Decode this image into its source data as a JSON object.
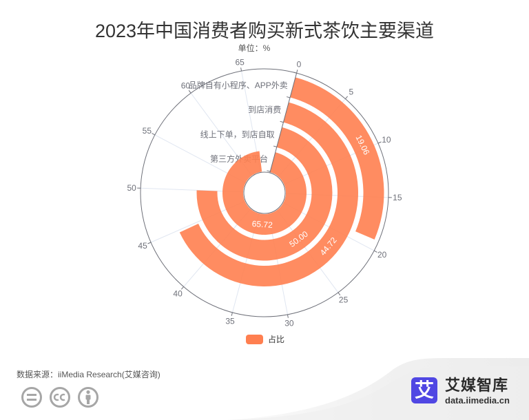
{
  "title": "2023年中国消费者购买新式茶饮主要渠道",
  "subtitle": "单位：%",
  "legend": {
    "label": "占比",
    "color": "#ff7f50"
  },
  "footer": {
    "source": "数据来源：iiMedia Research(艾媒咨询)",
    "license_icons": [
      "cc-nd-icon",
      "cc-icon",
      "cc-by-icon"
    ],
    "license_color": "#a6a6a6"
  },
  "brand": {
    "logo_char": "艾",
    "logo_color": "#5047e3",
    "name": "艾媒智库",
    "url": "data.iimedia.cn"
  },
  "chart_data": {
    "type": "bar",
    "subtype": "polar-radial-bar",
    "title": "2023年中国消费者购买新式茶饮主要渠道",
    "unit": "%",
    "categories": [
      "第三方外卖平台",
      "线上下单，到店自取",
      "到店消费",
      "品牌自有小程序、APP外卖"
    ],
    "series": [
      {
        "name": "占比",
        "color": "#ff7f50",
        "values": [
          65.72,
          50.0,
          44.72,
          19.06
        ],
        "labels": [
          "65.72",
          "50.00",
          "44.72",
          "19.06"
        ]
      }
    ],
    "angle_axis": {
      "min": 0,
      "max": 70,
      "interval": 5,
      "ticks": [
        "0",
        "5",
        "10",
        "15",
        "20",
        "25",
        "30",
        "35",
        "40",
        "45",
        "50",
        "55",
        "60",
        "65"
      ]
    },
    "radius_axis": {
      "type": "category",
      "labels": [
        "第三方外卖平台",
        "线上下单，到店自取",
        "到店消费",
        "品牌自有小程序、APP外卖"
      ]
    },
    "legend": {
      "entries": [
        "占比"
      ],
      "position": "bottom"
    },
    "grid": true
  }
}
